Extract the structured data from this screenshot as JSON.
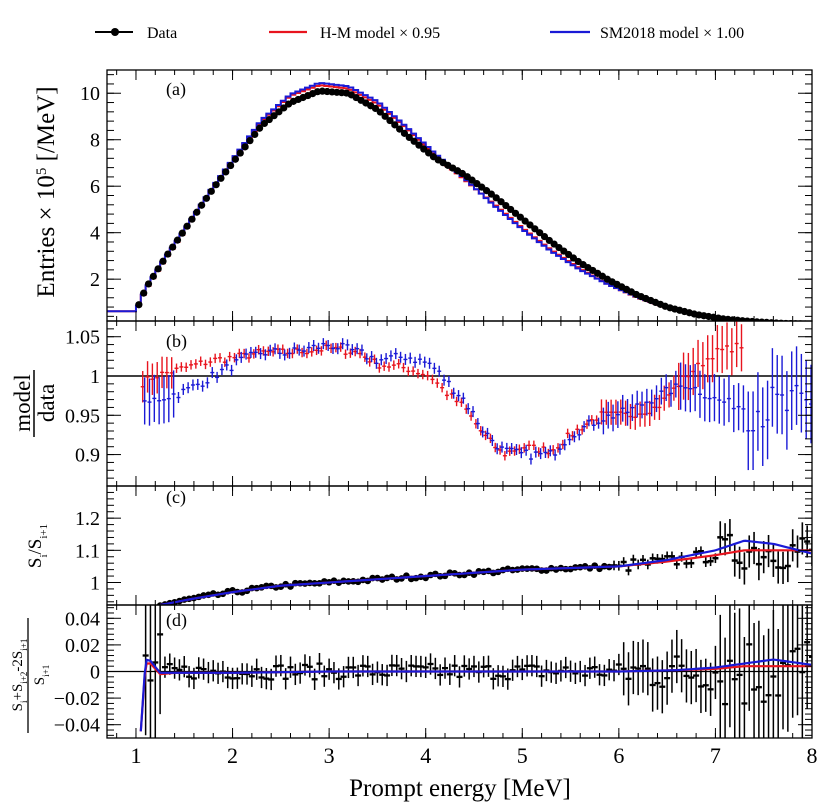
{
  "chart_data": {
    "type": "line",
    "title": "",
    "colors": {
      "data": "#000000",
      "hm": "#e8141e",
      "sm": "#1a1ad6",
      "panel_label": "#c000c8"
    },
    "legend": {
      "placement": "top",
      "entries": [
        {
          "key": "data",
          "label": "Data"
        },
        {
          "key": "hm",
          "label": "H-M model × 0.95"
        },
        {
          "key": "sm",
          "label": "SM2018 model × 1.00"
        }
      ]
    },
    "xlabel": "Prompt energy [MeV]",
    "xlim": [
      0.7,
      8
    ],
    "xticks": [
      1,
      2,
      3,
      4,
      5,
      6,
      7,
      8
    ],
    "xtick_labels": [
      "1",
      "2",
      "3",
      "4",
      "5",
      "6",
      "7",
      "8"
    ],
    "panels": [
      {
        "id": "a",
        "label": "(a)",
        "ylabel": "Entries × 10",
        "ylabel_sup": "5",
        "ylabel_unit": " [/MeV]",
        "ylim": [
          0.2,
          11
        ],
        "yticks": [
          2,
          4,
          6,
          8,
          10
        ],
        "ytick_labels": [
          "2",
          "4",
          "6",
          "8",
          "10"
        ],
        "spectrum_knots_x": [
          0.7,
          1.0,
          1.1,
          1.3,
          1.5,
          1.8,
          2.0,
          2.3,
          2.6,
          2.9,
          3.2,
          3.5,
          3.8,
          4.1,
          4.4,
          4.7,
          5.0,
          5.3,
          5.6,
          5.9,
          6.2,
          6.5,
          6.8,
          7.1,
          7.4,
          7.7,
          8.0
        ],
        "data_y": [
          0.6,
          0.6,
          1.6,
          2.9,
          4.1,
          5.9,
          7.0,
          8.6,
          9.6,
          10.1,
          10.0,
          9.3,
          8.2,
          7.2,
          6.5,
          5.6,
          4.6,
          3.6,
          2.7,
          1.95,
          1.3,
          0.8,
          0.48,
          0.28,
          0.17,
          0.1,
          0.06
        ],
        "hm_y": [
          0.62,
          0.62,
          1.55,
          2.85,
          4.05,
          5.95,
          7.1,
          8.8,
          9.9,
          10.35,
          10.2,
          9.55,
          8.5,
          7.3,
          6.3,
          5.25,
          4.2,
          3.25,
          2.45,
          1.75,
          1.2,
          0.78,
          0.48,
          0.28,
          0.17,
          0.1,
          0.06
        ],
        "sm_y": [
          0.62,
          0.62,
          1.58,
          2.9,
          4.1,
          6.0,
          7.15,
          8.85,
          9.95,
          10.45,
          10.3,
          9.65,
          8.55,
          7.4,
          6.35,
          5.2,
          4.15,
          3.2,
          2.4,
          1.75,
          1.22,
          0.79,
          0.48,
          0.28,
          0.17,
          0.1,
          0.06
        ]
      },
      {
        "id": "b",
        "label": "(b)",
        "ylabel_num": "model",
        "ylabel_den": "data",
        "ylim": [
          0.86,
          1.07
        ],
        "yticks": [
          0.9,
          0.95,
          1,
          1.05
        ],
        "ytick_labels": [
          "0.9",
          "0.95",
          "1",
          "1.05"
        ],
        "reference_line": 1,
        "ratio_knots_x": [
          1.05,
          1.2,
          1.5,
          1.8,
          2.1,
          2.3,
          2.6,
          3.0,
          3.3,
          3.5,
          3.8,
          4.05,
          4.2,
          4.4,
          4.6,
          4.8,
          5.0,
          5.3,
          5.5,
          5.8,
          6.1,
          6.4,
          6.7,
          7.0,
          7.3
        ],
        "hm_ratio": [
          0.99,
          1.0,
          1.01,
          1.02,
          1.025,
          1.03,
          1.03,
          1.035,
          1.03,
          1.015,
          1.01,
          1.0,
          0.98,
          0.96,
          0.925,
          0.9,
          0.91,
          0.905,
          0.925,
          0.95,
          0.95,
          0.96,
          1.0,
          1.03,
          1.04
        ],
        "sm_ratio": [
          0.96,
          0.97,
          0.98,
          1.0,
          1.02,
          1.03,
          1.03,
          1.04,
          1.03,
          1.02,
          1.025,
          1.015,
          0.995,
          0.97,
          0.93,
          0.905,
          0.9,
          0.9,
          0.925,
          0.945,
          0.955,
          0.975,
          0.99,
          0.97,
          0.96
        ]
      },
      {
        "id": "c",
        "label": "(c)",
        "ylabel": "S",
        "ylabel_sub1": "i",
        "ylabel_mid": "/S",
        "ylabel_sub2": "i+1",
        "ylim": [
          0.93,
          1.3
        ],
        "yticks": [
          1,
          1.1,
          1.2
        ],
        "ytick_labels": [
          "1",
          "1.1",
          "1.2"
        ],
        "curve_knots_x": [
          1.25,
          1.6,
          2.0,
          2.5,
          3.0,
          3.5,
          4.0,
          4.5,
          5.0,
          5.5,
          6.0,
          6.5,
          7.0,
          7.3,
          7.6,
          8.0
        ],
        "hm_y": [
          0.93,
          0.95,
          0.97,
          0.99,
          1.0,
          1.01,
          1.02,
          1.03,
          1.04,
          1.045,
          1.05,
          1.065,
          1.085,
          1.1,
          1.1,
          1.1
        ],
        "sm_y": [
          0.93,
          0.95,
          0.97,
          0.99,
          1.0,
          1.01,
          1.02,
          1.03,
          1.04,
          1.045,
          1.05,
          1.07,
          1.1,
          1.13,
          1.12,
          1.09
        ]
      },
      {
        "id": "d",
        "label": "(d)",
        "ylabel_num": "S",
        "ylabel_num_tail": "+S",
        "ylabel_num_tail2": "-2S",
        "ylabel_den": "S",
        "ylabel_sub_i": "i",
        "ylabel_sub_i2": "i+2",
        "ylabel_sub_i1": "i+1",
        "ylim": [
          -0.05,
          0.05
        ],
        "yticks": [
          -0.04,
          -0.02,
          0,
          0.02,
          0.04
        ],
        "ytick_labels": [
          "−0.04",
          "−0.02",
          "0",
          "0.02",
          "0.04"
        ],
        "reference_line": 0,
        "curve_knots_x": [
          1.05,
          1.1,
          1.15,
          1.25,
          1.4,
          2.0,
          3.0,
          4.0,
          5.0,
          6.0,
          6.6,
          7.0,
          7.3,
          7.6,
          8.0
        ],
        "hm_y": [
          -0.045,
          0.006,
          0.006,
          -0.002,
          -0.001,
          -0.001,
          0.0,
          0.0,
          0.0,
          0.0,
          0.001,
          0.002,
          0.004,
          0.004,
          0.004
        ],
        "sm_y": [
          -0.045,
          0.009,
          0.008,
          -0.001,
          -0.001,
          -0.001,
          0.0,
          0.0,
          0.0,
          0.0,
          0.001,
          0.003,
          0.006,
          0.009,
          0.005
        ]
      }
    ]
  }
}
